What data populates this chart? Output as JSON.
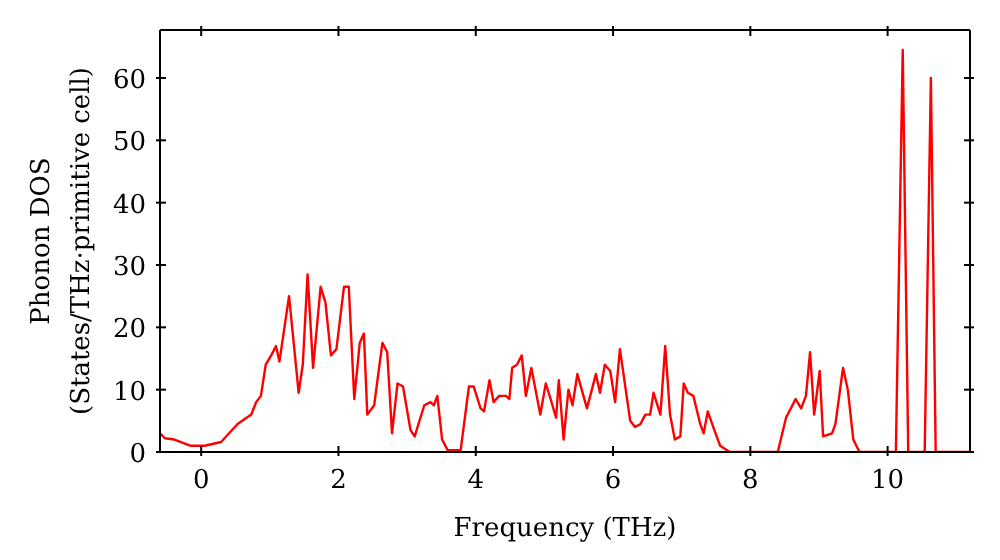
{
  "chart_data": {
    "type": "line",
    "xlabel": "Frequency (THz)",
    "ylabel": "Phonon DOS\n(States/THz·primitive cell)",
    "xlim": [
      -0.6,
      11.2
    ],
    "ylim": [
      0,
      67.7
    ],
    "xticks": [
      0,
      2,
      4,
      6,
      8,
      10
    ],
    "yticks": [
      0,
      10,
      20,
      30,
      40,
      50,
      60
    ],
    "marker": "none",
    "line_style": "solid",
    "x": [
      -0.6,
      -0.53,
      -0.39,
      -0.15,
      0.05,
      0.29,
      0.53,
      0.73,
      0.8,
      0.87,
      0.94,
      1.02,
      1.09,
      1.14,
      1.28,
      1.42,
      1.48,
      1.55,
      1.63,
      1.74,
      1.81,
      1.89,
      1.97,
      2.08,
      2.15,
      2.23,
      2.31,
      2.37,
      2.42,
      2.52,
      2.64,
      2.71,
      2.78,
      2.86,
      2.94,
      3.05,
      3.11,
      3.25,
      3.34,
      3.39,
      3.44,
      3.51,
      3.59,
      3.78,
      3.9,
      3.97,
      4.07,
      4.12,
      4.2,
      4.26,
      4.34,
      4.44,
      4.49,
      4.53,
      4.6,
      4.67,
      4.73,
      4.81,
      4.94,
      5.02,
      5.09,
      5.17,
      5.21,
      5.28,
      5.35,
      5.41,
      5.48,
      5.62,
      5.75,
      5.81,
      5.88,
      5.96,
      6.03,
      6.1,
      6.25,
      6.32,
      6.4,
      6.47,
      6.54,
      6.59,
      6.69,
      6.76,
      6.83,
      6.9,
      6.98,
      7.03,
      7.09,
      7.17,
      7.27,
      7.32,
      7.38,
      7.46,
      7.56,
      7.7,
      8.4,
      8.52,
      8.66,
      8.74,
      8.81,
      8.87,
      8.93,
      9.01,
      9.06,
      9.19,
      9.24,
      9.35,
      9.42,
      9.5,
      9.59,
      10.12,
      10.22,
      10.3,
      10.54,
      10.63,
      10.7,
      11.2
    ],
    "series": [
      {
        "color": "#ff0000",
        "values": [
          3,
          2.2,
          2,
          1,
          1,
          1.6,
          4.5,
          6,
          8,
          9,
          14,
          15.5,
          17,
          14.5,
          25,
          9.5,
          14,
          28.5,
          13.5,
          26.5,
          24,
          15.5,
          16.5,
          26.5,
          26.5,
          8.5,
          17.5,
          19,
          6,
          7.5,
          17.5,
          16,
          3,
          11,
          10.5,
          3.5,
          2.5,
          7.5,
          8,
          7.5,
          9,
          2,
          0.3,
          0.3,
          10.5,
          10.5,
          7,
          6.5,
          11.5,
          8,
          9,
          9,
          8.5,
          13.5,
          14,
          15.5,
          9,
          13.5,
          6,
          11,
          8.5,
          5.5,
          11.5,
          2,
          10,
          7.5,
          12.5,
          7,
          12.5,
          9.5,
          14,
          13,
          8,
          16.5,
          5,
          4,
          4.5,
          6,
          6,
          9.5,
          6,
          17,
          6,
          2,
          2.5,
          11,
          9.5,
          9,
          4.5,
          3,
          6.5,
          4,
          1,
          0,
          0,
          5.5,
          8.5,
          7,
          9,
          16,
          6,
          13,
          2.5,
          3,
          4.5,
          13.5,
          10,
          2,
          0,
          0,
          64.5,
          0,
          0,
          60,
          0,
          0
        ]
      }
    ]
  }
}
